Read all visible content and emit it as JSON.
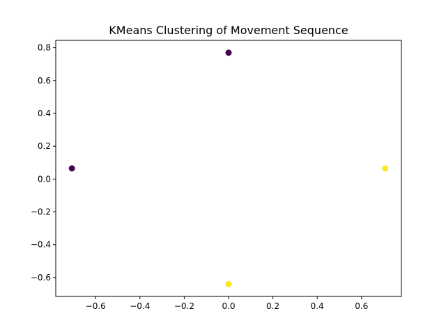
{
  "chart_data": {
    "type": "scatter",
    "title": "KMeans Clustering of Movement Sequence",
    "xlabel": "",
    "ylabel": "",
    "xlim": [
      -0.78,
      0.78
    ],
    "ylim": [
      -0.715,
      0.845
    ],
    "xticks": [
      -0.6,
      -0.4,
      -0.2,
      0.0,
      0.2,
      0.4,
      0.6
    ],
    "xtick_labels": [
      "−0.6",
      "−0.4",
      "−0.2",
      "0.0",
      "0.2",
      "0.4",
      "0.6"
    ],
    "yticks": [
      -0.6,
      -0.4,
      -0.2,
      0.0,
      0.2,
      0.4,
      0.6,
      0.8
    ],
    "ytick_labels": [
      "−0.6",
      "−0.4",
      "−0.2",
      "0.0",
      "0.2",
      "0.4",
      "0.6",
      "0.8"
    ],
    "grid": false,
    "points": [
      {
        "x": 0.0,
        "y": 0.77,
        "cluster": 0
      },
      {
        "x": -0.707,
        "y": 0.065,
        "cluster": 0
      },
      {
        "x": 0.707,
        "y": 0.065,
        "cluster": 1
      },
      {
        "x": 0.0,
        "y": -0.64,
        "cluster": 1
      }
    ],
    "cluster_colors": [
      "#440154",
      "#fde725"
    ]
  }
}
